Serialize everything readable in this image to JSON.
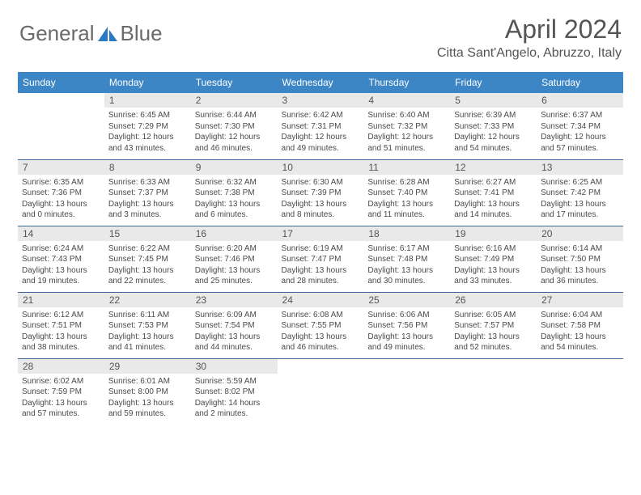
{
  "logo": {
    "textLeft": "General",
    "textRight": "Blue"
  },
  "title": "April 2024",
  "location": "Citta Sant'Angelo, Abruzzo, Italy",
  "weekdays": [
    "Sunday",
    "Monday",
    "Tuesday",
    "Wednesday",
    "Thursday",
    "Friday",
    "Saturday"
  ],
  "colors": {
    "headerBg": "#3d86c6",
    "headerFg": "#ffffff",
    "dayNumBg": "#e9e9e9",
    "borderColor": "#3d6a9a",
    "logoBlue": "#2a79c4"
  },
  "weeks": [
    [
      null,
      {
        "n": "1",
        "sunrise": "6:45 AM",
        "sunset": "7:29 PM",
        "daylight": "12 hours and 43 minutes."
      },
      {
        "n": "2",
        "sunrise": "6:44 AM",
        "sunset": "7:30 PM",
        "daylight": "12 hours and 46 minutes."
      },
      {
        "n": "3",
        "sunrise": "6:42 AM",
        "sunset": "7:31 PM",
        "daylight": "12 hours and 49 minutes."
      },
      {
        "n": "4",
        "sunrise": "6:40 AM",
        "sunset": "7:32 PM",
        "daylight": "12 hours and 51 minutes."
      },
      {
        "n": "5",
        "sunrise": "6:39 AM",
        "sunset": "7:33 PM",
        "daylight": "12 hours and 54 minutes."
      },
      {
        "n": "6",
        "sunrise": "6:37 AM",
        "sunset": "7:34 PM",
        "daylight": "12 hours and 57 minutes."
      }
    ],
    [
      {
        "n": "7",
        "sunrise": "6:35 AM",
        "sunset": "7:36 PM",
        "daylight": "13 hours and 0 minutes."
      },
      {
        "n": "8",
        "sunrise": "6:33 AM",
        "sunset": "7:37 PM",
        "daylight": "13 hours and 3 minutes."
      },
      {
        "n": "9",
        "sunrise": "6:32 AM",
        "sunset": "7:38 PM",
        "daylight": "13 hours and 6 minutes."
      },
      {
        "n": "10",
        "sunrise": "6:30 AM",
        "sunset": "7:39 PM",
        "daylight": "13 hours and 8 minutes."
      },
      {
        "n": "11",
        "sunrise": "6:28 AM",
        "sunset": "7:40 PM",
        "daylight": "13 hours and 11 minutes."
      },
      {
        "n": "12",
        "sunrise": "6:27 AM",
        "sunset": "7:41 PM",
        "daylight": "13 hours and 14 minutes."
      },
      {
        "n": "13",
        "sunrise": "6:25 AM",
        "sunset": "7:42 PM",
        "daylight": "13 hours and 17 minutes."
      }
    ],
    [
      {
        "n": "14",
        "sunrise": "6:24 AM",
        "sunset": "7:43 PM",
        "daylight": "13 hours and 19 minutes."
      },
      {
        "n": "15",
        "sunrise": "6:22 AM",
        "sunset": "7:45 PM",
        "daylight": "13 hours and 22 minutes."
      },
      {
        "n": "16",
        "sunrise": "6:20 AM",
        "sunset": "7:46 PM",
        "daylight": "13 hours and 25 minutes."
      },
      {
        "n": "17",
        "sunrise": "6:19 AM",
        "sunset": "7:47 PM",
        "daylight": "13 hours and 28 minutes."
      },
      {
        "n": "18",
        "sunrise": "6:17 AM",
        "sunset": "7:48 PM",
        "daylight": "13 hours and 30 minutes."
      },
      {
        "n": "19",
        "sunrise": "6:16 AM",
        "sunset": "7:49 PM",
        "daylight": "13 hours and 33 minutes."
      },
      {
        "n": "20",
        "sunrise": "6:14 AM",
        "sunset": "7:50 PM",
        "daylight": "13 hours and 36 minutes."
      }
    ],
    [
      {
        "n": "21",
        "sunrise": "6:12 AM",
        "sunset": "7:51 PM",
        "daylight": "13 hours and 38 minutes."
      },
      {
        "n": "22",
        "sunrise": "6:11 AM",
        "sunset": "7:53 PM",
        "daylight": "13 hours and 41 minutes."
      },
      {
        "n": "23",
        "sunrise": "6:09 AM",
        "sunset": "7:54 PM",
        "daylight": "13 hours and 44 minutes."
      },
      {
        "n": "24",
        "sunrise": "6:08 AM",
        "sunset": "7:55 PM",
        "daylight": "13 hours and 46 minutes."
      },
      {
        "n": "25",
        "sunrise": "6:06 AM",
        "sunset": "7:56 PM",
        "daylight": "13 hours and 49 minutes."
      },
      {
        "n": "26",
        "sunrise": "6:05 AM",
        "sunset": "7:57 PM",
        "daylight": "13 hours and 52 minutes."
      },
      {
        "n": "27",
        "sunrise": "6:04 AM",
        "sunset": "7:58 PM",
        "daylight": "13 hours and 54 minutes."
      }
    ],
    [
      {
        "n": "28",
        "sunrise": "6:02 AM",
        "sunset": "7:59 PM",
        "daylight": "13 hours and 57 minutes."
      },
      {
        "n": "29",
        "sunrise": "6:01 AM",
        "sunset": "8:00 PM",
        "daylight": "13 hours and 59 minutes."
      },
      {
        "n": "30",
        "sunrise": "5:59 AM",
        "sunset": "8:02 PM",
        "daylight": "14 hours and 2 minutes."
      },
      null,
      null,
      null,
      null
    ]
  ]
}
